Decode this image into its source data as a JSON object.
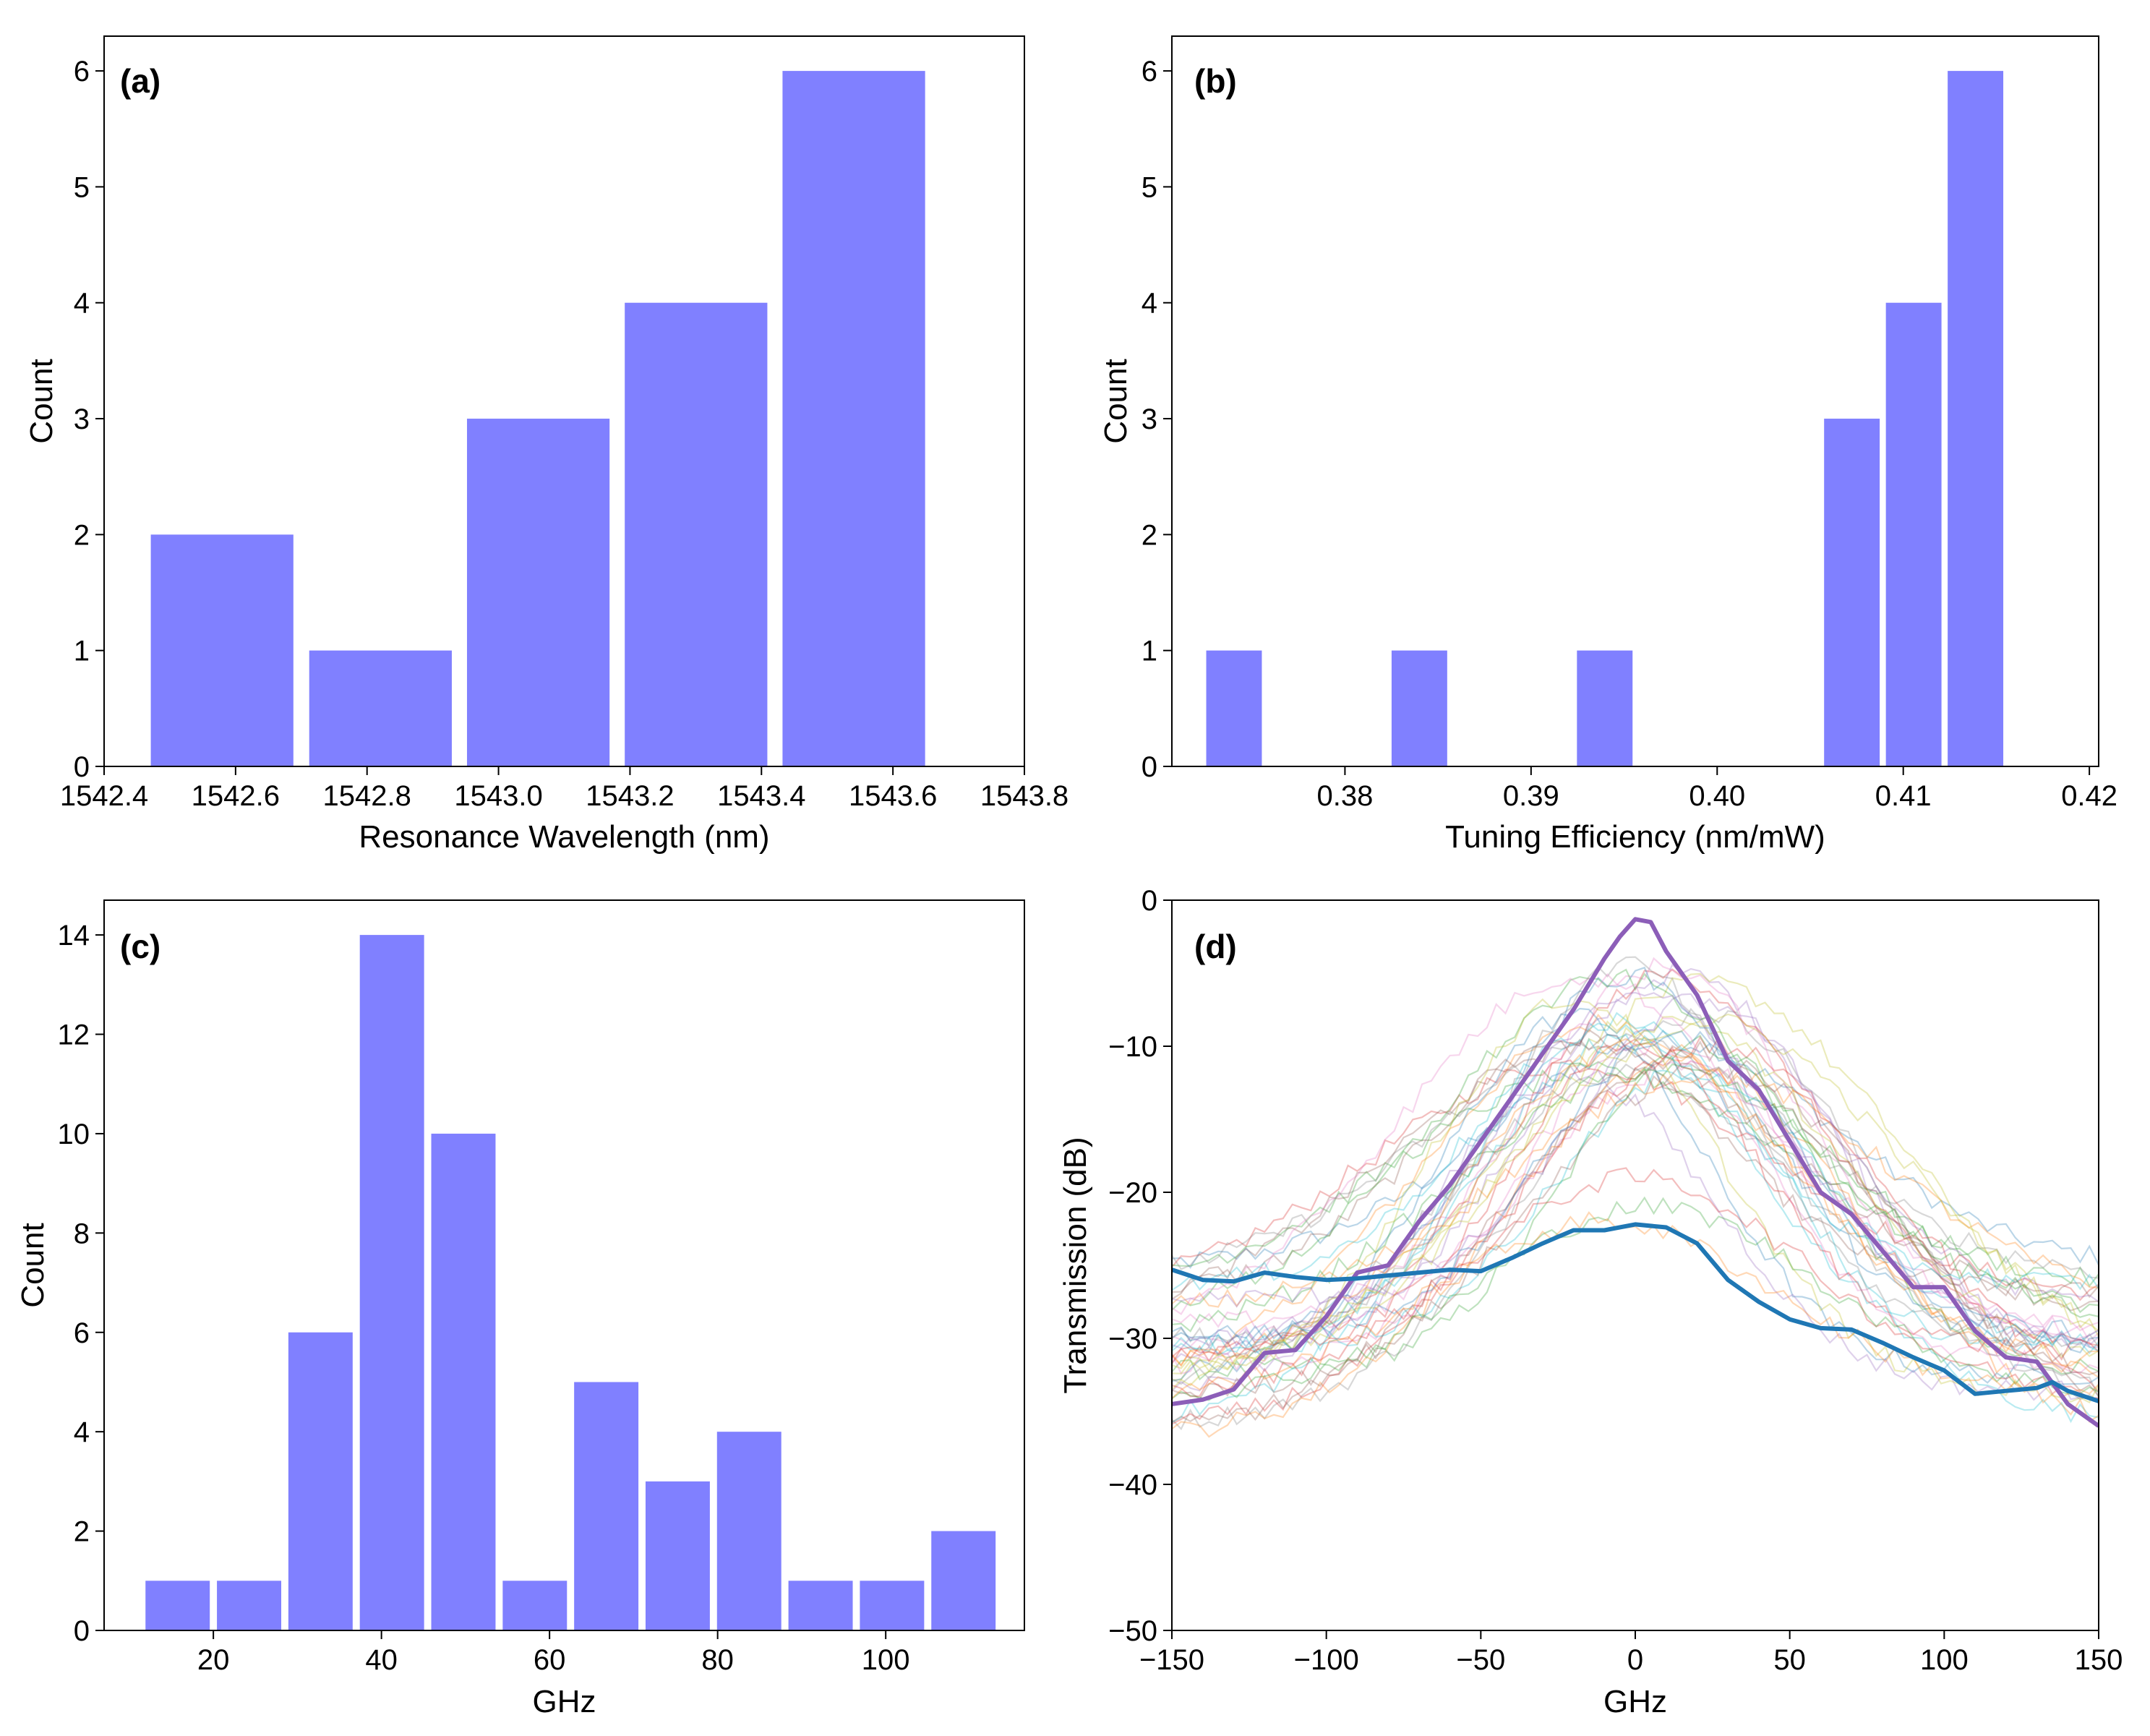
{
  "colors": {
    "bar": "#8080ff",
    "thin_palette": [
      "#1f77b4",
      "#ff7f0e",
      "#2ca02c",
      "#d62728",
      "#9467bd",
      "#8c564b",
      "#e377c2",
      "#7f7f7f",
      "#bcbd22",
      "#17becf"
    ],
    "highlight_purple": "#8c5eb8",
    "highlight_blue": "#1f77b4"
  },
  "chart_data": [
    {
      "id": "a",
      "type": "bar",
      "panel_label": "(a)",
      "xlabel": "Resonance Wavelength (nm)",
      "ylabel": "Count",
      "xlim": [
        1542.4,
        1543.8
      ],
      "ylim": [
        0,
        6.3
      ],
      "xticks": [
        1542.4,
        1542.6,
        1542.8,
        1543.0,
        1543.2,
        1543.4,
        1543.6,
        1543.8
      ],
      "xtick_labels": [
        "1542.4",
        "1542.6",
        "1542.8",
        "1543.0",
        "1543.2",
        "1543.4",
        "1543.6",
        "1543.8"
      ],
      "yticks": [
        0,
        1,
        2,
        3,
        4,
        5,
        6
      ],
      "ytick_labels": [
        "0",
        "1",
        "2",
        "3",
        "4",
        "5",
        "6"
      ],
      "bin_edges": [
        1542.459,
        1542.7,
        1542.94,
        1543.18,
        1543.42,
        1543.66
      ],
      "rwidth": 0.9,
      "counts": [
        2,
        1,
        3,
        4,
        6
      ]
    },
    {
      "id": "b",
      "type": "bar",
      "panel_label": "(b)",
      "xlabel": "Tuning Efficiency (nm/mW)",
      "ylabel": "Count",
      "xlim": [
        0.3707,
        0.4205
      ],
      "ylim": [
        0,
        6.3
      ],
      "xticks": [
        0.38,
        0.39,
        0.4,
        0.41,
        0.42
      ],
      "xtick_labels": [
        "0.38",
        "0.39",
        "0.40",
        "0.41",
        "0.42"
      ],
      "yticks": [
        0,
        1,
        2,
        3,
        4,
        5,
        6
      ],
      "ytick_labels": [
        "0",
        "1",
        "2",
        "3",
        "4",
        "5",
        "6"
      ],
      "bin_edges": [
        0.37238,
        0.3757,
        0.37902,
        0.38234,
        0.38566,
        0.38898,
        0.3923,
        0.39562,
        0.39894,
        0.40226,
        0.40558,
        0.4089,
        0.41222,
        0.41554
      ],
      "rwidth": 0.9,
      "counts": [
        1,
        0,
        0,
        1,
        0,
        0,
        1,
        0,
        0,
        0,
        3,
        4,
        6
      ]
    },
    {
      "id": "c",
      "type": "bar",
      "panel_label": "(c)",
      "xlabel": "GHz",
      "ylabel": "Count",
      "xlim": [
        7,
        116.5
      ],
      "ylim": [
        0,
        14.7
      ],
      "xticks": [
        20,
        40,
        60,
        80,
        100
      ],
      "xtick_labels": [
        "20",
        "40",
        "60",
        "80",
        "100"
      ],
      "yticks": [
        0,
        2,
        4,
        6,
        8,
        10,
        12,
        14
      ],
      "ytick_labels": [
        "0",
        "2",
        "4",
        "6",
        "8",
        "10",
        "12",
        "14"
      ],
      "bin_edges": [
        11.5,
        20.0,
        28.5,
        37.0,
        45.5,
        54.0,
        62.5,
        71.0,
        79.5,
        88.0,
        96.5,
        105.0
      ],
      "rwidth": 0.9,
      "counts": [
        1,
        1,
        6,
        14,
        10,
        1,
        5,
        3,
        4,
        1,
        1,
        2
      ]
    },
    {
      "id": "d",
      "type": "line",
      "panel_label": "(d)",
      "xlabel": "GHz",
      "ylabel": "Transmission (dB)",
      "xlim": [
        -150,
        150
      ],
      "ylim": [
        -50,
        0
      ],
      "xticks": [
        -150,
        -100,
        -50,
        0,
        50,
        100,
        150
      ],
      "xtick_labels": [
        "−150",
        "−100",
        "−50",
        "0",
        "50",
        "100",
        "150"
      ],
      "yticks": [
        -50,
        -40,
        -30,
        -20,
        -10,
        0
      ],
      "ytick_labels": [
        "−50",
        "−40",
        "−30",
        "−20",
        "−10",
        "0"
      ],
      "highlight_series": [
        {
          "name": "highlight-purple",
          "color": "#8c5eb8",
          "x": [
            -150,
            -140,
            -130,
            -120,
            -110,
            -100,
            -90,
            -80,
            -70,
            -60,
            -50,
            -40,
            -30,
            -20,
            -10,
            -5,
            0,
            5,
            10,
            20,
            30,
            40,
            50,
            60,
            70,
            80,
            90,
            100,
            110,
            120,
            130,
            140,
            150
          ],
          "y": [
            -34.5,
            -34.2,
            -33.5,
            -31.0,
            -30.8,
            -28.5,
            -25.5,
            -25.0,
            -22.0,
            -19.5,
            -16.5,
            -13.5,
            -10.5,
            -7.5,
            -4.0,
            -2.5,
            -1.3,
            -1.5,
            -3.5,
            -6.5,
            -11.0,
            -13.0,
            -16.5,
            -20.0,
            -21.5,
            -24.0,
            -26.5,
            -26.5,
            -29.5,
            -31.3,
            -31.6,
            -34.5,
            -36.0
          ]
        },
        {
          "name": "highlight-blue",
          "color": "#1f77b4",
          "x": [
            -150,
            -140,
            -130,
            -120,
            -110,
            -100,
            -90,
            -80,
            -70,
            -60,
            -50,
            -40,
            -30,
            -20,
            -10,
            0,
            10,
            20,
            30,
            40,
            50,
            60,
            70,
            80,
            90,
            100,
            110,
            120,
            130,
            135,
            140,
            150
          ],
          "y": [
            -25.3,
            -26.0,
            -26.1,
            -25.5,
            -25.8,
            -26.0,
            -25.9,
            -25.7,
            -25.5,
            -25.3,
            -25.4,
            -24.5,
            -23.5,
            -22.6,
            -22.6,
            -22.2,
            -22.4,
            -23.5,
            -26.0,
            -27.5,
            -28.7,
            -29.3,
            -29.4,
            -30.3,
            -31.3,
            -32.2,
            -33.8,
            -33.6,
            -33.4,
            -33.0,
            -33.6,
            -34.3
          ]
        }
      ],
      "background_traces": {
        "count": 40,
        "model": "gaussian",
        "x_range": [
          -150,
          150
        ],
        "peak_center_range": [
          -20,
          25
        ],
        "peak_db_range": [
          -12,
          -4
        ],
        "sigma_range": [
          40,
          65
        ],
        "floor_db_range": [
          -37,
          -25
        ],
        "low_peak_traces": [
          {
            "color": "#d62728",
            "peak_db": -19,
            "center": 0
          },
          {
            "color": "#2ca02c",
            "peak_db": -21,
            "center": 5
          },
          {
            "color": "#ff7f0e",
            "peak_db": -22,
            "center": -10
          }
        ]
      }
    }
  ]
}
